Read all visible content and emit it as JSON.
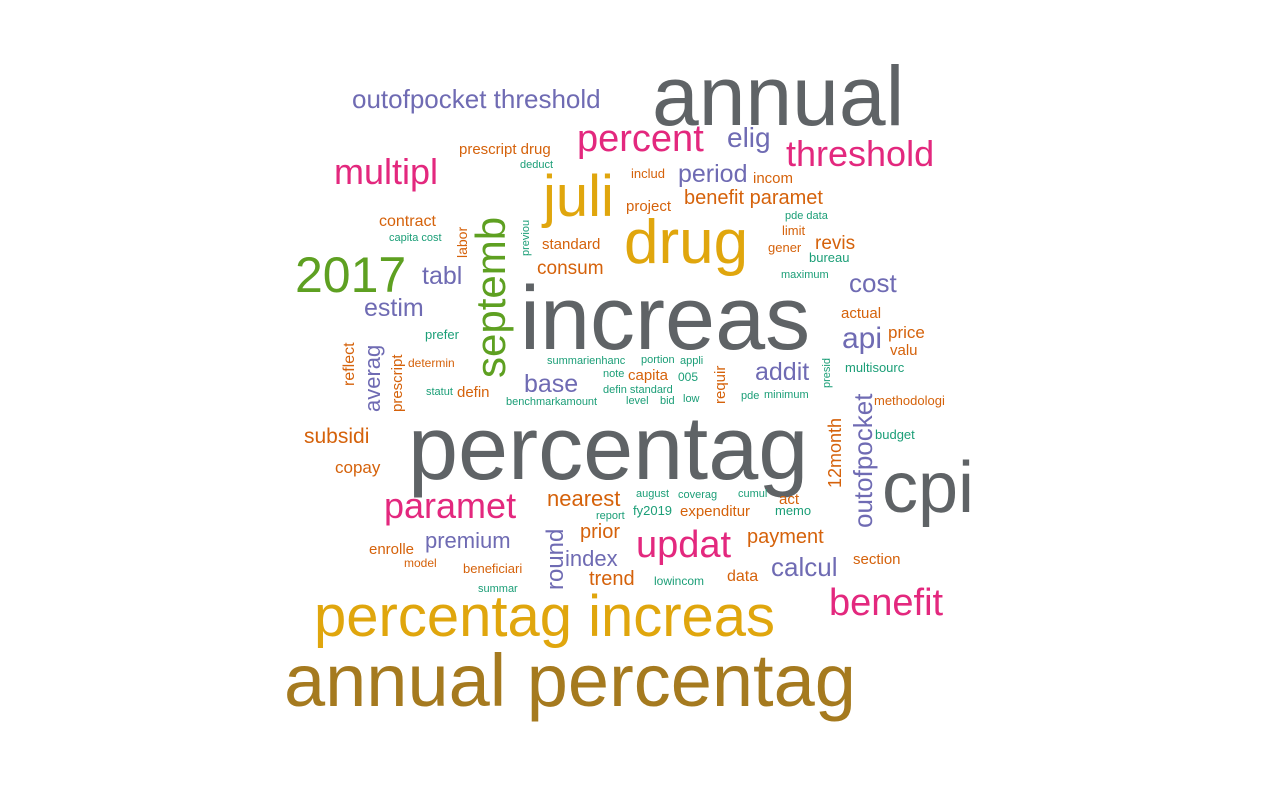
{
  "colors": {
    "grey": "#5f6366",
    "olive": "#a57a1f",
    "gold": "#e0a60d",
    "pink": "#e3287e",
    "purple": "#6f6bb3",
    "green": "#5ea021",
    "orange": "#d5620b",
    "teal": "#1b9e77"
  },
  "words": [
    {
      "id": "w-annual",
      "text": "annual",
      "color": "grey",
      "vertical": false
    },
    {
      "id": "w-increas",
      "text": "increas",
      "color": "grey",
      "vertical": false
    },
    {
      "id": "w-percentag",
      "text": "percentag",
      "color": "grey",
      "vertical": false
    },
    {
      "id": "w-cpi",
      "text": "cpi",
      "color": "grey",
      "vertical": false
    },
    {
      "id": "w-annual-percentag",
      "text": "annual percentag",
      "color": "olive",
      "vertical": false
    },
    {
      "id": "w-percentag-increas",
      "text": "percentag increas",
      "color": "gold",
      "vertical": false
    },
    {
      "id": "w-drug",
      "text": "drug",
      "color": "gold",
      "vertical": false
    },
    {
      "id": "w-juli",
      "text": "juli",
      "color": "gold",
      "vertical": false
    },
    {
      "id": "w-septemb",
      "text": "septemb",
      "color": "green",
      "vertical": true
    },
    {
      "id": "w-2017",
      "text": "2017",
      "color": "green",
      "vertical": false
    },
    {
      "id": "w-percent",
      "text": "percent",
      "color": "pink",
      "vertical": false
    },
    {
      "id": "w-threshold",
      "text": "threshold",
      "color": "pink",
      "vertical": false
    },
    {
      "id": "w-multipl",
      "text": "multipl",
      "color": "pink",
      "vertical": false
    },
    {
      "id": "w-benefit",
      "text": "benefit",
      "color": "pink",
      "vertical": false
    },
    {
      "id": "w-updat",
      "text": "updat",
      "color": "pink",
      "vertical": false
    },
    {
      "id": "w-paramet",
      "text": "paramet",
      "color": "pink",
      "vertical": false
    },
    {
      "id": "w-outofpocket-threshold",
      "text": "outofpocket threshold",
      "color": "purple",
      "vertical": false
    },
    {
      "id": "w-elig",
      "text": "elig",
      "color": "purple",
      "vertical": false
    },
    {
      "id": "w-period",
      "text": "period",
      "color": "purple",
      "vertical": false
    },
    {
      "id": "w-tabl",
      "text": "tabl",
      "color": "purple",
      "vertical": false
    },
    {
      "id": "w-estim",
      "text": "estim",
      "color": "purple",
      "vertical": false
    },
    {
      "id": "w-cost",
      "text": "cost",
      "color": "purple",
      "vertical": false
    },
    {
      "id": "w-api",
      "text": "api",
      "color": "purple",
      "vertical": false
    },
    {
      "id": "w-addit",
      "text": "addit",
      "color": "purple",
      "vertical": false
    },
    {
      "id": "w-base",
      "text": "base",
      "color": "purple",
      "vertical": false
    },
    {
      "id": "w-averag",
      "text": "averag",
      "color": "purple",
      "vertical": true
    },
    {
      "id": "w-outofpocket",
      "text": "outofpocket",
      "color": "purple",
      "vertical": true
    },
    {
      "id": "w-premium",
      "text": "premium",
      "color": "purple",
      "vertical": false
    },
    {
      "id": "w-round",
      "text": "round",
      "color": "purple",
      "vertical": true
    },
    {
      "id": "w-calcul",
      "text": "calcul",
      "color": "purple",
      "vertical": false
    },
    {
      "id": "w-index",
      "text": "index",
      "color": "purple",
      "vertical": false
    },
    {
      "id": "w-prescript-drug",
      "text": "prescript drug",
      "color": "orange",
      "vertical": false
    },
    {
      "id": "w-benefit-paramet",
      "text": "benefit paramet",
      "color": "orange",
      "vertical": false
    },
    {
      "id": "w-incom",
      "text": "incom",
      "color": "orange",
      "vertical": false
    },
    {
      "id": "w-includ",
      "text": "includ",
      "color": "orange",
      "vertical": false
    },
    {
      "id": "w-project",
      "text": "project",
      "color": "orange",
      "vertical": false
    },
    {
      "id": "w-contract",
      "text": "contract",
      "color": "orange",
      "vertical": false
    },
    {
      "id": "w-labor",
      "text": "labor",
      "color": "orange",
      "vertical": true
    },
    {
      "id": "w-standard",
      "text": "standard",
      "color": "orange",
      "vertical": false
    },
    {
      "id": "w-consum",
      "text": "consum",
      "color": "orange",
      "vertical": false
    },
    {
      "id": "w-revis",
      "text": "revis",
      "color": "orange",
      "vertical": false
    },
    {
      "id": "w-limit",
      "text": "limit",
      "color": "orange",
      "vertical": false
    },
    {
      "id": "w-gener",
      "text": "gener",
      "color": "orange",
      "vertical": false
    },
    {
      "id": "w-actual",
      "text": "actual",
      "color": "orange",
      "vertical": false
    },
    {
      "id": "w-price",
      "text": "price",
      "color": "orange",
      "vertical": false
    },
    {
      "id": "w-valu",
      "text": "valu",
      "color": "orange",
      "vertical": false
    },
    {
      "id": "w-reflect",
      "text": "reflect",
      "color": "orange",
      "vertical": true
    },
    {
      "id": "w-prescript",
      "text": "prescript",
      "color": "orange",
      "vertical": true
    },
    {
      "id": "w-determin",
      "text": "determin",
      "color": "orange",
      "vertical": false
    },
    {
      "id": "w-defin",
      "text": "defin",
      "color": "orange",
      "vertical": false
    },
    {
      "id": "w-capita",
      "text": "capita",
      "color": "orange",
      "vertical": false
    },
    {
      "id": "w-requir",
      "text": "requir",
      "color": "orange",
      "vertical": true
    },
    {
      "id": "w-methodologi",
      "text": "methodologi",
      "color": "orange",
      "vertical": false
    },
    {
      "id": "w-subsidi",
      "text": "subsidi",
      "color": "orange",
      "vertical": false
    },
    {
      "id": "w-copay",
      "text": "copay",
      "color": "orange",
      "vertical": false
    },
    {
      "id": "w-12month",
      "text": "12month",
      "color": "orange",
      "vertical": true
    },
    {
      "id": "w-nearest",
      "text": "nearest",
      "color": "orange",
      "vertical": false
    },
    {
      "id": "w-act",
      "text": "act",
      "color": "orange",
      "vertical": false
    },
    {
      "id": "w-expenditur",
      "text": "expenditur",
      "color": "orange",
      "vertical": false
    },
    {
      "id": "w-prior",
      "text": "prior",
      "color": "orange",
      "vertical": false
    },
    {
      "id": "w-payment",
      "text": "payment",
      "color": "orange",
      "vertical": false
    },
    {
      "id": "w-enrolle",
      "text": "enrolle",
      "color": "orange",
      "vertical": false
    },
    {
      "id": "w-model",
      "text": "model",
      "color": "orange",
      "vertical": false
    },
    {
      "id": "w-beneficiari",
      "text": "beneficiari",
      "color": "orange",
      "vertical": false
    },
    {
      "id": "w-trend",
      "text": "trend",
      "color": "orange",
      "vertical": false
    },
    {
      "id": "w-data",
      "text": "data",
      "color": "orange",
      "vertical": false
    },
    {
      "id": "w-section",
      "text": "section",
      "color": "orange",
      "vertical": false
    },
    {
      "id": "w-deduct",
      "text": "deduct",
      "color": "teal",
      "vertical": false
    },
    {
      "id": "w-capita-cost",
      "text": "capita cost",
      "color": "teal",
      "vertical": false
    },
    {
      "id": "w-previou",
      "text": "previou",
      "color": "teal",
      "vertical": true
    },
    {
      "id": "w-pde-data",
      "text": "pde data",
      "color": "teal",
      "vertical": false
    },
    {
      "id": "w-bureau",
      "text": "bureau",
      "color": "teal",
      "vertical": false
    },
    {
      "id": "w-maximum",
      "text": "maximum",
      "color": "teal",
      "vertical": false
    },
    {
      "id": "w-prefer",
      "text": "prefer",
      "color": "teal",
      "vertical": false
    },
    {
      "id": "w-summarienhanc",
      "text": "summarienhanc",
      "color": "teal",
      "vertical": false
    },
    {
      "id": "w-portion",
      "text": "portion",
      "color": "teal",
      "vertical": false
    },
    {
      "id": "w-appli",
      "text": "appli",
      "color": "teal",
      "vertical": false
    },
    {
      "id": "w-presid",
      "text": "presid",
      "color": "teal",
      "vertical": true
    },
    {
      "id": "w-multisourc",
      "text": "multisourc",
      "color": "teal",
      "vertical": false
    },
    {
      "id": "w-note",
      "text": "note",
      "color": "teal",
      "vertical": false
    },
    {
      "id": "w-005",
      "text": "005",
      "color": "teal",
      "vertical": false
    },
    {
      "id": "w-statut",
      "text": "statut",
      "color": "teal",
      "vertical": false
    },
    {
      "id": "w-defin-standard",
      "text": "defin standard",
      "color": "teal",
      "vertical": false
    },
    {
      "id": "w-pde",
      "text": "pde",
      "color": "teal",
      "vertical": false
    },
    {
      "id": "w-minimum",
      "text": "minimum",
      "color": "teal",
      "vertical": false
    },
    {
      "id": "w-benchmarkamount",
      "text": "benchmarkamount",
      "color": "teal",
      "vertical": false
    },
    {
      "id": "w-level",
      "text": "level",
      "color": "teal",
      "vertical": false
    },
    {
      "id": "w-bid",
      "text": "bid",
      "color": "teal",
      "vertical": false
    },
    {
      "id": "w-low",
      "text": "low",
      "color": "teal",
      "vertical": false
    },
    {
      "id": "w-budget",
      "text": "budget",
      "color": "teal",
      "vertical": false
    },
    {
      "id": "w-august",
      "text": "august",
      "color": "teal",
      "vertical": false
    },
    {
      "id": "w-coverag",
      "text": "coverag",
      "color": "teal",
      "vertical": false
    },
    {
      "id": "w-cumul",
      "text": "cumul",
      "color": "teal",
      "vertical": false
    },
    {
      "id": "w-report",
      "text": "report",
      "color": "teal",
      "vertical": false
    },
    {
      "id": "w-fy2019",
      "text": "fy2019",
      "color": "teal",
      "vertical": false
    },
    {
      "id": "w-memo",
      "text": "memo",
      "color": "teal",
      "vertical": false
    },
    {
      "id": "w-lowincom",
      "text": "lowincom",
      "color": "teal",
      "vertical": false
    },
    {
      "id": "w-summar",
      "text": "summar",
      "color": "teal",
      "vertical": false
    }
  ]
}
